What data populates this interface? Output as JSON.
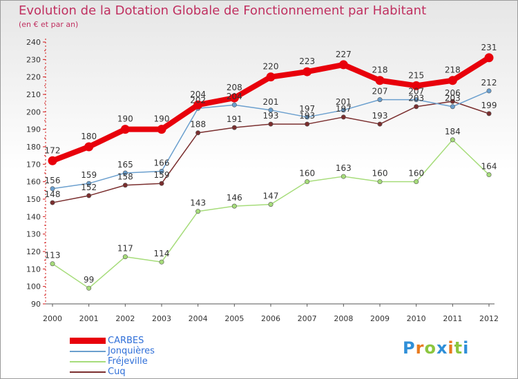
{
  "chart_data": {
    "type": "line",
    "title": "Evolution de la Dotation Globale de Fonctionnement par Habitant",
    "subtitle": "(en € et par an)",
    "xlabel": "",
    "ylabel": "",
    "categories": [
      "2000",
      "2001",
      "2002",
      "2003",
      "2004",
      "2005",
      "2006",
      "2007",
      "2008",
      "2009",
      "2010",
      "2011",
      "2012"
    ],
    "ylim": [
      90,
      240
    ],
    "yticks": [
      90,
      100,
      110,
      120,
      130,
      140,
      150,
      160,
      170,
      180,
      190,
      200,
      210,
      220,
      230,
      240
    ],
    "grid": false,
    "legend_position": "bottom-left",
    "series": [
      {
        "name": "CARBES",
        "color": "#e8000b",
        "values": [
          172,
          180,
          190,
          190,
          204,
          208,
          220,
          223,
          227,
          218,
          215,
          218,
          231
        ]
      },
      {
        "name": "Jonquières",
        "color": "#6a9fce",
        "values": [
          156,
          159,
          165,
          166,
          202,
          204,
          201,
          197,
          201,
          207,
          207,
          203,
          212
        ]
      },
      {
        "name": "Fréjeville",
        "color": "#a6dc7a",
        "values": [
          113,
          99,
          117,
          114,
          143,
          146,
          147,
          160,
          163,
          160,
          160,
          184,
          164
        ]
      },
      {
        "name": "Cuq",
        "color": "#7a2e2e",
        "values": [
          148,
          152,
          158,
          159,
          188,
          191,
          193,
          193,
          197,
          193,
          203,
          206,
          199
        ]
      }
    ]
  },
  "legend": {
    "items": [
      {
        "label": "CARBES",
        "color": "#e8000b"
      },
      {
        "label": "Jonquières",
        "color": "#6a9fce"
      },
      {
        "label": "Fréjeville",
        "color": "#a6dc7a"
      },
      {
        "label": "Cuq",
        "color": "#7a2e2e"
      }
    ]
  },
  "brand": {
    "letters": [
      {
        "ch": "P",
        "color": "#2f8fd8"
      },
      {
        "ch": "r",
        "color": "#e87a1e"
      },
      {
        "ch": "o",
        "color": "#8cc63f"
      },
      {
        "ch": "x",
        "color": "#2f8fd8"
      },
      {
        "ch": "i",
        "color": "#e87a1e"
      },
      {
        "ch": "t",
        "color": "#8cc63f"
      },
      {
        "ch": "i",
        "color": "#2f8fd8"
      }
    ]
  }
}
